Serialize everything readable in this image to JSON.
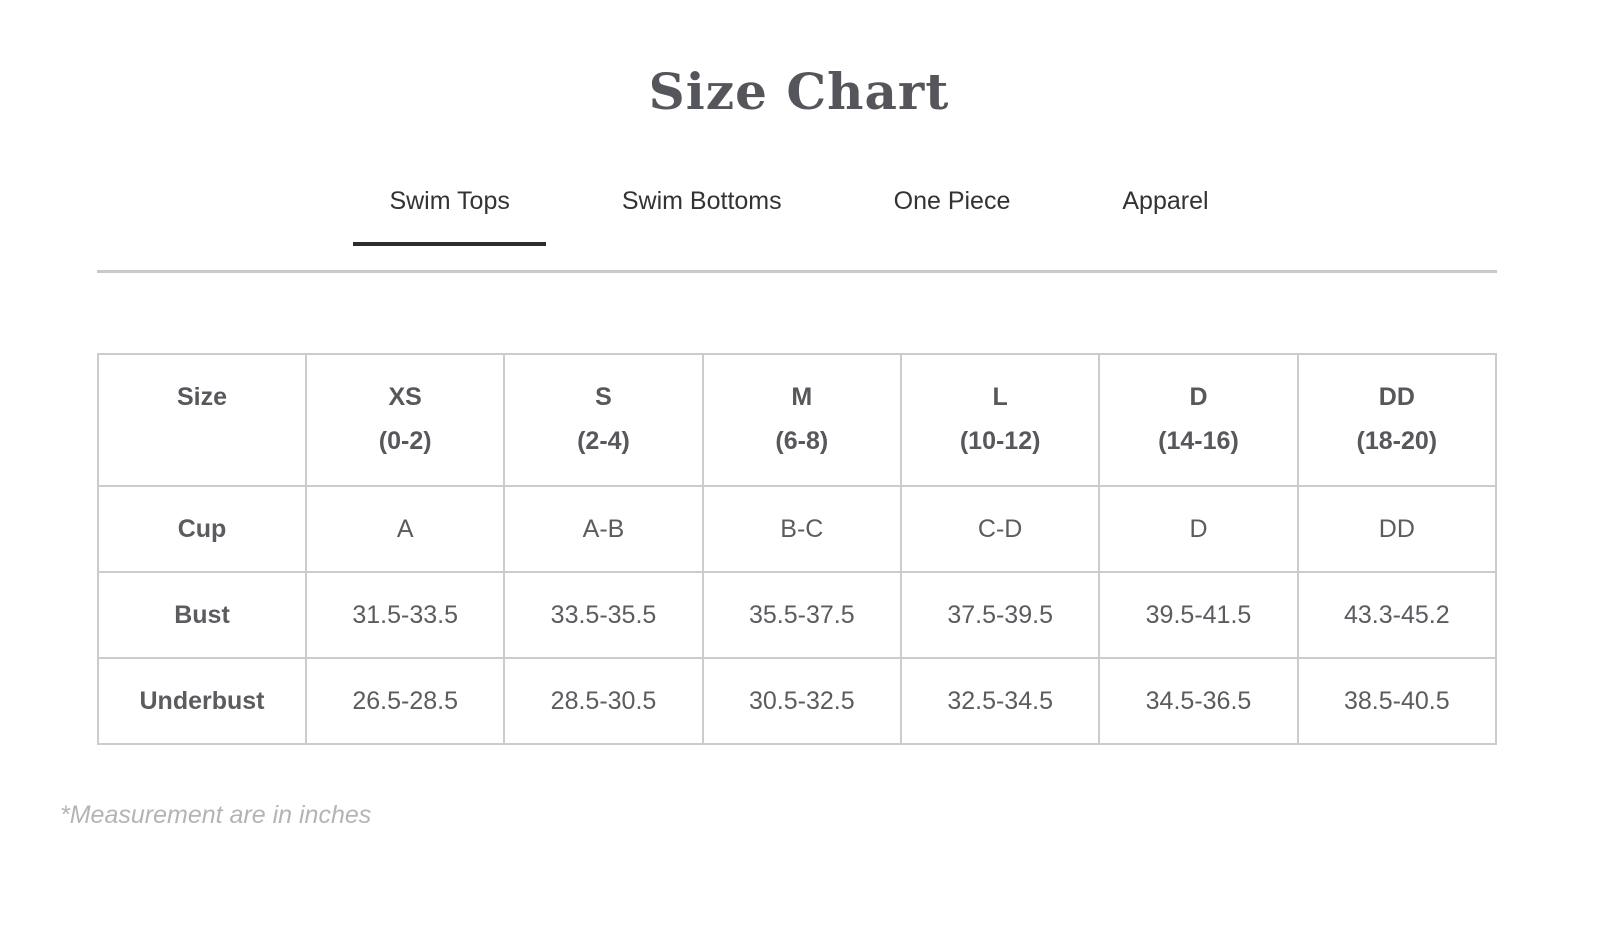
{
  "page": {
    "title": "Size Chart",
    "footnote": "*Measurement are in inches"
  },
  "tabs": [
    {
      "label": "Swim Tops",
      "active": true
    },
    {
      "label": "Swim Bottoms",
      "active": false
    },
    {
      "label": "One Piece",
      "active": false
    },
    {
      "label": "Apparel",
      "active": false
    }
  ],
  "size_table": {
    "unit": "inches",
    "header": {
      "corner_label": "Size",
      "columns": [
        {
          "size": "XS",
          "range": "(0-2)"
        },
        {
          "size": "S",
          "range": "(2-4)"
        },
        {
          "size": "M",
          "range": "(6-8)"
        },
        {
          "size": "L",
          "range": "(10-12)"
        },
        {
          "size": "D",
          "range": "(14-16)"
        },
        {
          "size": "DD",
          "range": "(18-20)"
        }
      ]
    },
    "rows": [
      {
        "label": "Cup",
        "values": [
          "A",
          "A-B",
          "B-C",
          "C-D",
          "D",
          "DD"
        ]
      },
      {
        "label": "Bust",
        "values": [
          "31.5-33.5",
          "33.5-35.5",
          "35.5-37.5",
          "37.5-39.5",
          "39.5-41.5",
          "43.3-45.2"
        ]
      },
      {
        "label": "Underbust",
        "values": [
          "26.5-28.5",
          "28.5-30.5",
          "30.5-32.5",
          "32.5-34.5",
          "34.5-36.5",
          "38.5-40.5"
        ]
      }
    ]
  },
  "colors": {
    "title_text": "#55555c",
    "tab_text": "#333333",
    "active_tab_underline": "#2d2d2d",
    "divider": "#c9c9c9",
    "table_border": "#cccccc",
    "header_text": "#57575c",
    "row_label_text": "#4c4c50",
    "data_text": "#5c5c60",
    "footnote_text": "#b4b4b4"
  }
}
